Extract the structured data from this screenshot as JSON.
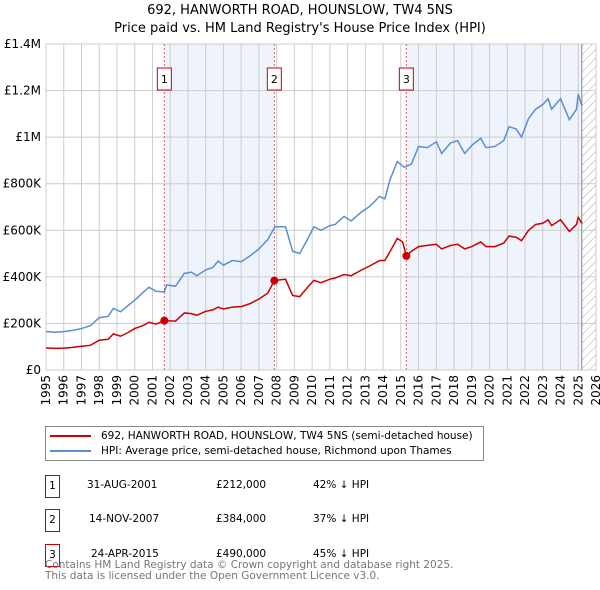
{
  "chart_data": {
    "type": "line",
    "title": "692, HANWORTH ROAD, HOUNSLOW, TW4 5NS",
    "subtitle": "Price paid vs. HM Land Registry's House Price Index (HPI)",
    "xlim": [
      1995,
      2026
    ],
    "ylim": [
      0,
      1400000
    ],
    "x_ticks": [
      "1995",
      "1996",
      "1997",
      "1998",
      "1999",
      "2000",
      "2001",
      "2002",
      "2003",
      "2004",
      "2005",
      "2006",
      "2007",
      "2008",
      "2009",
      "2010",
      "2011",
      "2012",
      "2013",
      "2014",
      "2015",
      "2016",
      "2017",
      "2018",
      "2019",
      "2020",
      "2021",
      "2022",
      "2023",
      "2024",
      "2025",
      "2026"
    ],
    "y_ticks": [
      {
        "v": 0,
        "label": "£0"
      },
      {
        "v": 200000,
        "label": "£200K"
      },
      {
        "v": 400000,
        "label": "£400K"
      },
      {
        "v": 600000,
        "label": "£600K"
      },
      {
        "v": 800000,
        "label": "£800K"
      },
      {
        "v": 1000000,
        "label": "£1M"
      },
      {
        "v": 1200000,
        "label": "£1.2M"
      },
      {
        "v": 1400000,
        "label": "£1.4M"
      }
    ],
    "grid": true,
    "data_end": 2025.2,
    "shaded_ranges": [
      [
        2001.67,
        2007.87
      ],
      [
        2015.31,
        2025.2
      ]
    ],
    "series": [
      {
        "name": "692, HANWORTH ROAD, HOUNSLOW, TW4 5NS (semi-detached house)",
        "color": "#cc0000",
        "x": [
          1995,
          1995.5,
          1996,
          1996.5,
          1997,
          1997.5,
          1998,
          1998.5,
          1998.8,
          1999.2,
          1999.6,
          2000,
          2000.5,
          2000.8,
          2001.2,
          2001.67,
          2002.3,
          2002.8,
          2003.2,
          2003.5,
          2004,
          2004.4,
          2004.7,
          2005,
          2005.5,
          2006,
          2006.5,
          2007,
          2007.5,
          2007.87,
          2008.5,
          2008.9,
          2009.3,
          2009.8,
          2010.1,
          2010.5,
          2011,
          2011.3,
          2011.8,
          2012.2,
          2012.8,
          2013.2,
          2013.8,
          2014.1,
          2014.4,
          2014.8,
          2015.1,
          2015.31,
          2015.6,
          2016,
          2016.5,
          2017,
          2017.3,
          2017.8,
          2018.2,
          2018.6,
          2019,
          2019.5,
          2019.8,
          2020.3,
          2020.8,
          2021.1,
          2021.5,
          2021.8,
          2022.2,
          2022.6,
          2023,
          2023.3,
          2023.5,
          2024,
          2024.5,
          2024.9,
          2025.0,
          2025.2
        ],
        "values": [
          95000,
          93000,
          94000,
          97000,
          102000,
          106000,
          128000,
          132000,
          155000,
          145000,
          160000,
          178000,
          192000,
          205000,
          197000,
          212000,
          210000,
          245000,
          242000,
          235000,
          252000,
          258000,
          270000,
          262000,
          270000,
          272000,
          285000,
          305000,
          330000,
          384000,
          390000,
          320000,
          315000,
          360000,
          385000,
          375000,
          390000,
          395000,
          410000,
          405000,
          430000,
          445000,
          470000,
          470000,
          510000,
          565000,
          550000,
          490000,
          510000,
          530000,
          535000,
          540000,
          520000,
          535000,
          540000,
          520000,
          530000,
          550000,
          530000,
          530000,
          545000,
          575000,
          570000,
          555000,
          600000,
          625000,
          630000,
          645000,
          620000,
          645000,
          595000,
          625000,
          655000,
          630000
        ]
      },
      {
        "name": "HPI: Average price, semi-detached house, Richmond upon Thames",
        "color": "#5b8fd1",
        "x": [
          1995,
          1995.5,
          1996,
          1996.5,
          1997,
          1997.5,
          1998,
          1998.5,
          1998.8,
          1999.2,
          1999.6,
          2000,
          2000.5,
          2000.8,
          2001.2,
          2001.67,
          2001.8,
          2002.3,
          2002.8,
          2003.2,
          2003.5,
          2004,
          2004.4,
          2004.7,
          2005,
          2005.5,
          2006,
          2006.5,
          2007,
          2007.5,
          2007.9,
          2008.5,
          2008.9,
          2009.3,
          2009.8,
          2010.1,
          2010.5,
          2011,
          2011.3,
          2011.8,
          2012.2,
          2012.8,
          2013.2,
          2013.8,
          2014.1,
          2014.4,
          2014.8,
          2015.2,
          2015.6,
          2016,
          2016.5,
          2017,
          2017.3,
          2017.8,
          2018.2,
          2018.6,
          2019,
          2019.5,
          2019.8,
          2020.3,
          2020.8,
          2021.1,
          2021.5,
          2021.8,
          2022.2,
          2022.6,
          2023,
          2023.3,
          2023.5,
          2024,
          2024.5,
          2024.9,
          2025.0,
          2025.2
        ],
        "values": [
          165000,
          162000,
          165000,
          170000,
          178000,
          190000,
          225000,
          230000,
          265000,
          250000,
          275000,
          300000,
          335000,
          355000,
          338000,
          335000,
          365000,
          360000,
          415000,
          420000,
          405000,
          430000,
          440000,
          468000,
          450000,
          470000,
          465000,
          490000,
          520000,
          560000,
          615000,
          615000,
          510000,
          500000,
          570000,
          615000,
          600000,
          620000,
          625000,
          660000,
          640000,
          680000,
          700000,
          745000,
          735000,
          820000,
          895000,
          870000,
          885000,
          960000,
          955000,
          980000,
          930000,
          975000,
          985000,
          930000,
          965000,
          995000,
          955000,
          960000,
          985000,
          1045000,
          1035000,
          1000000,
          1080000,
          1120000,
          1140000,
          1165000,
          1120000,
          1165000,
          1075000,
          1120000,
          1185000,
          1135000
        ]
      }
    ],
    "sales": [
      {
        "num": "1",
        "date": "31-AUG-2001",
        "x": 2001.67,
        "price": "£212,000",
        "price_value": 212000,
        "hpi": "42% ↓ HPI"
      },
      {
        "num": "2",
        "date": "14-NOV-2007",
        "x": 2007.87,
        "price": "£384,000",
        "price_value": 384000,
        "hpi": "37% ↓ HPI"
      },
      {
        "num": "3",
        "date": "24-APR-2015",
        "x": 2015.31,
        "price": "£490,000",
        "price_value": 490000,
        "hpi": "45% ↓ HPI"
      }
    ]
  },
  "footer": {
    "line1": "Contains HM Land Registry data © Crown copyright and database right 2025.",
    "line2": "This data is licensed under the Open Government Licence v3.0."
  }
}
